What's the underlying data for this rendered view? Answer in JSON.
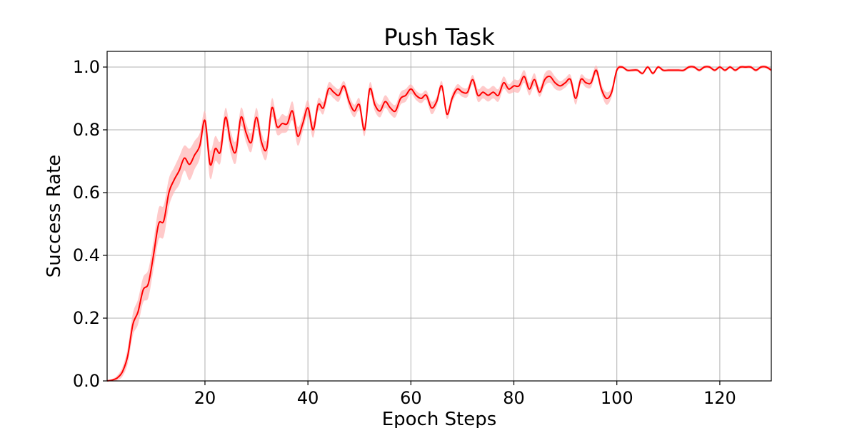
{
  "chart_data": {
    "type": "line",
    "title": "Push Task",
    "xlabel": "Epoch Steps",
    "ylabel": "Success Rate",
    "xlim": [
      1,
      130
    ],
    "ylim": [
      0.0,
      1.05
    ],
    "xticks": [
      20,
      40,
      60,
      80,
      100,
      120
    ],
    "yticks": [
      0.0,
      0.2,
      0.4,
      0.6,
      0.8,
      1.0
    ],
    "xtick_labels": [
      "20",
      "40",
      "60",
      "80",
      "100",
      "120"
    ],
    "ytick_labels": [
      "0.0",
      "0.2",
      "0.4",
      "0.6",
      "0.8",
      "1.0"
    ],
    "grid": true,
    "line_color": "#ff0000",
    "band_color": "#ffb3b3",
    "series": [
      {
        "x": [
          1,
          2,
          3,
          4,
          5,
          6,
          7,
          8,
          9,
          10,
          11,
          12,
          13,
          14,
          15,
          16,
          17,
          18,
          19,
          20,
          21,
          22,
          23,
          24,
          25,
          26,
          27,
          28,
          29,
          30,
          31,
          32,
          33,
          34,
          35,
          36,
          37,
          38,
          39,
          40,
          41,
          42,
          43,
          44,
          45,
          46,
          47,
          48,
          49,
          50,
          51,
          52,
          53,
          54,
          55,
          56,
          57,
          58,
          59,
          60,
          61,
          62,
          63,
          64,
          65,
          66,
          67,
          68,
          69,
          70,
          71,
          72,
          73,
          74,
          75,
          76,
          77,
          78,
          79,
          80,
          81,
          82,
          83,
          84,
          85,
          86,
          87,
          88,
          89,
          90,
          91,
          92,
          93,
          94,
          95,
          96,
          97,
          98,
          99,
          100,
          101,
          102,
          103,
          104,
          105,
          106,
          107,
          108,
          109,
          110,
          111,
          112,
          113,
          114,
          115,
          116,
          117,
          118,
          119,
          120,
          121,
          122,
          123,
          124,
          125,
          126,
          127,
          128,
          129,
          130
        ],
        "values": [
          0.0,
          0.003,
          0.01,
          0.03,
          0.08,
          0.18,
          0.22,
          0.29,
          0.31,
          0.4,
          0.5,
          0.51,
          0.6,
          0.64,
          0.67,
          0.71,
          0.69,
          0.72,
          0.75,
          0.83,
          0.69,
          0.74,
          0.73,
          0.84,
          0.76,
          0.73,
          0.84,
          0.79,
          0.76,
          0.84,
          0.76,
          0.74,
          0.87,
          0.81,
          0.82,
          0.82,
          0.86,
          0.78,
          0.82,
          0.87,
          0.8,
          0.88,
          0.87,
          0.93,
          0.92,
          0.91,
          0.94,
          0.89,
          0.86,
          0.88,
          0.8,
          0.93,
          0.88,
          0.86,
          0.89,
          0.87,
          0.86,
          0.9,
          0.91,
          0.93,
          0.91,
          0.9,
          0.91,
          0.87,
          0.89,
          0.94,
          0.85,
          0.9,
          0.93,
          0.92,
          0.92,
          0.96,
          0.91,
          0.92,
          0.91,
          0.92,
          0.91,
          0.95,
          0.93,
          0.94,
          0.94,
          0.97,
          0.93,
          0.96,
          0.92,
          0.96,
          0.97,
          0.95,
          0.94,
          0.95,
          0.96,
          0.9,
          0.96,
          0.95,
          0.95,
          0.99,
          0.93,
          0.9,
          0.92,
          0.99,
          1.0,
          0.99,
          0.99,
          0.99,
          0.98,
          1.0,
          0.98,
          1.0,
          0.99,
          0.99,
          0.99,
          0.99,
          0.99,
          1.0,
          1.0,
          0.99,
          1.0,
          1.0,
          0.99,
          1.0,
          0.99,
          1.0,
          0.99,
          1.0,
          1.0,
          1.0,
          0.99,
          1.0,
          1.0,
          0.99
        ],
        "band": [
          0.0,
          0.003,
          0.008,
          0.015,
          0.025,
          0.035,
          0.04,
          0.04,
          0.045,
          0.045,
          0.05,
          0.05,
          0.045,
          0.04,
          0.045,
          0.04,
          0.05,
          0.045,
          0.04,
          0.03,
          0.045,
          0.04,
          0.035,
          0.03,
          0.035,
          0.035,
          0.03,
          0.03,
          0.03,
          0.03,
          0.03,
          0.03,
          0.03,
          0.025,
          0.03,
          0.025,
          0.03,
          0.03,
          0.025,
          0.025,
          0.025,
          0.02,
          0.02,
          0.02,
          0.02,
          0.02,
          0.015,
          0.02,
          0.02,
          0.02,
          0.02,
          0.02,
          0.02,
          0.02,
          0.02,
          0.02,
          0.02,
          0.02,
          0.02,
          0.015,
          0.015,
          0.015,
          0.015,
          0.02,
          0.015,
          0.015,
          0.015,
          0.015,
          0.015,
          0.015,
          0.015,
          0.015,
          0.02,
          0.02,
          0.02,
          0.02,
          0.02,
          0.02,
          0.015,
          0.02,
          0.02,
          0.02,
          0.02,
          0.02,
          0.015,
          0.02,
          0.02,
          0.02,
          0.015,
          0.015,
          0.015,
          0.02,
          0.015,
          0.015,
          0.015,
          0.015,
          0.015,
          0.02,
          0.015,
          0.008,
          0.005,
          0.005,
          0.005,
          0.005,
          0.005,
          0.005,
          0.005,
          0.005,
          0.005,
          0.005,
          0.005,
          0.005,
          0.005,
          0.005,
          0.005,
          0.005,
          0.005,
          0.005,
          0.005,
          0.005,
          0.005,
          0.005,
          0.005,
          0.005,
          0.005,
          0.005,
          0.005,
          0.005,
          0.005,
          0.005
        ]
      }
    ]
  }
}
